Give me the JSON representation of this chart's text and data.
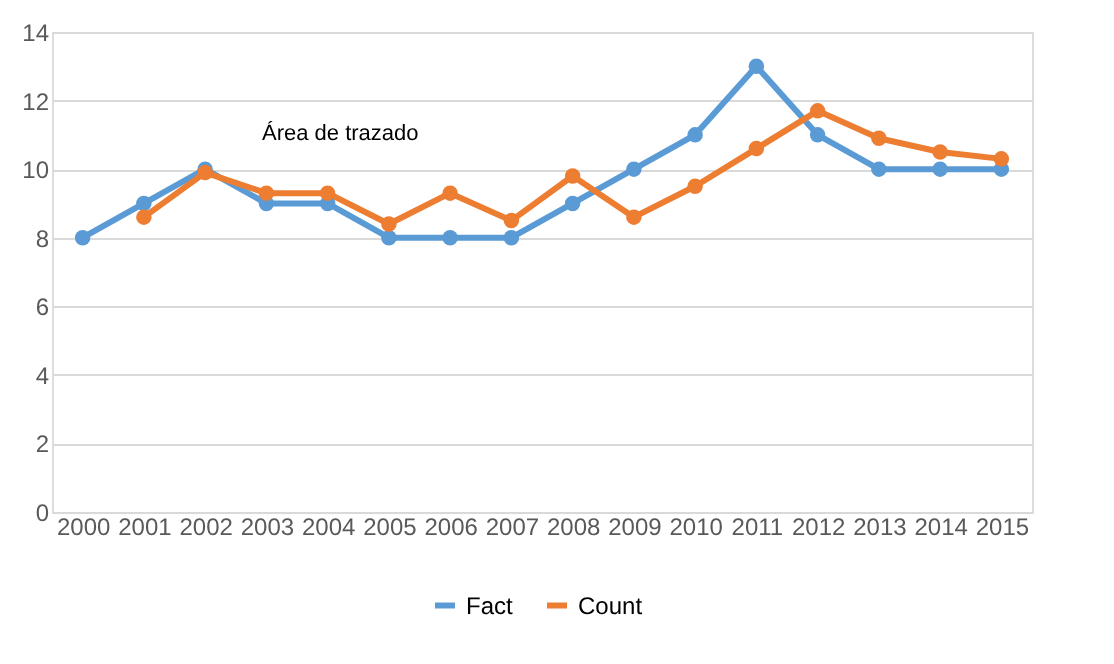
{
  "chart_data": {
    "type": "line",
    "categories": [
      "2000",
      "2001",
      "2002",
      "2003",
      "2004",
      "2005",
      "2006",
      "2007",
      "2008",
      "2009",
      "2010",
      "2011",
      "2012",
      "2013",
      "2014",
      "2015"
    ],
    "series": [
      {
        "name": "Fact",
        "color": "#5b9bd5",
        "values": [
          8,
          9,
          10,
          9,
          9,
          8,
          8,
          8,
          9,
          10,
          11,
          13,
          11,
          10,
          10,
          10
        ]
      },
      {
        "name": "Count",
        "color": "#ed7d31",
        "values": [
          null,
          8.6,
          9.9,
          9.3,
          9.3,
          8.4,
          9.3,
          8.5,
          9.8,
          8.6,
          9.5,
          10.6,
          11.7,
          10.9,
          10.5,
          10.3
        ]
      }
    ],
    "ylim": [
      0,
      14
    ],
    "yticks": [
      0,
      2,
      4,
      6,
      8,
      10,
      12,
      14
    ],
    "grid": "y",
    "legend": "bottom",
    "marker": "circle",
    "line_style": "solid",
    "annotations": [
      "Área de trazado"
    ]
  }
}
